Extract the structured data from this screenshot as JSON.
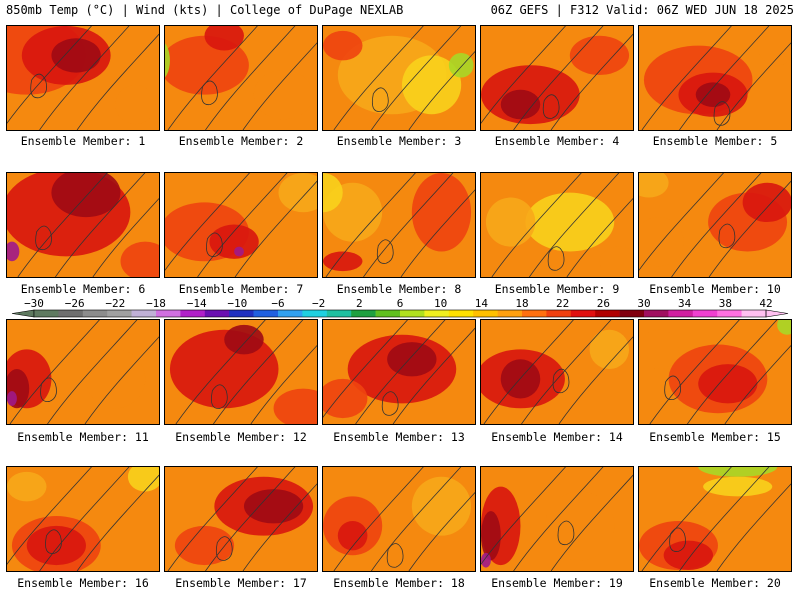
{
  "header": {
    "left": "850mb Temp (°C) | Wind (kts) | College of DuPage NEXLAB",
    "right": "06Z GEFS | F312 Valid: 06Z WED JUN 18 2025"
  },
  "panels": [
    {
      "caption": "Ensemble Member: 1"
    },
    {
      "caption": "Ensemble Member: 2"
    },
    {
      "caption": "Ensemble Member: 3"
    },
    {
      "caption": "Ensemble Member: 4"
    },
    {
      "caption": "Ensemble Member: 5"
    },
    {
      "caption": "Ensemble Member: 6"
    },
    {
      "caption": "Ensemble Member: 7"
    },
    {
      "caption": "Ensemble Member: 8"
    },
    {
      "caption": "Ensemble Member: 9"
    },
    {
      "caption": "Ensemble Member: 10"
    },
    {
      "caption": "Ensemble Member: 11"
    },
    {
      "caption": "Ensemble Member: 12"
    },
    {
      "caption": "Ensemble Member: 13"
    },
    {
      "caption": "Ensemble Member: 14"
    },
    {
      "caption": "Ensemble Member: 15"
    },
    {
      "caption": "Ensemble Member: 16"
    },
    {
      "caption": "Ensemble Member: 17"
    },
    {
      "caption": "Ensemble Member: 18"
    },
    {
      "caption": "Ensemble Member: 19"
    },
    {
      "caption": "Ensemble Member: 20"
    }
  ],
  "colorbar": {
    "labels": [
      "−30",
      "−26",
      "−22",
      "−18",
      "−14",
      "−10",
      "−6",
      "−2",
      "2",
      "6",
      "10",
      "14",
      "18",
      "22",
      "26",
      "30",
      "34",
      "38",
      "42"
    ],
    "colors": [
      "#5f7a60",
      "#6f6f6f",
      "#8c8c8c",
      "#a0a0a0",
      "#c0b0d6",
      "#d070e0",
      "#b020c8",
      "#6a10b0",
      "#2030c0",
      "#2060e0",
      "#30a0f0",
      "#20d0e0",
      "#20c0a0",
      "#20a040",
      "#60c020",
      "#b0e020",
      "#f0f020",
      "#ffe000",
      "#ffc000",
      "#ffa010",
      "#ff7010",
      "#f04010",
      "#e01010",
      "#b00000",
      "#800010",
      "#a01060",
      "#d020a0",
      "#f040d0",
      "#ff70e0",
      "#ffc0f0"
    ]
  },
  "palette": {
    "deep": "#9e0a14",
    "red": "#d8160e",
    "orangered": "#ee4410",
    "orange": "#f5890f",
    "lightorange": "#f7a81a",
    "yellow": "#f8d21c",
    "lime": "#a8d827",
    "purple": "#a01a8a",
    "contour": "#333333"
  }
}
